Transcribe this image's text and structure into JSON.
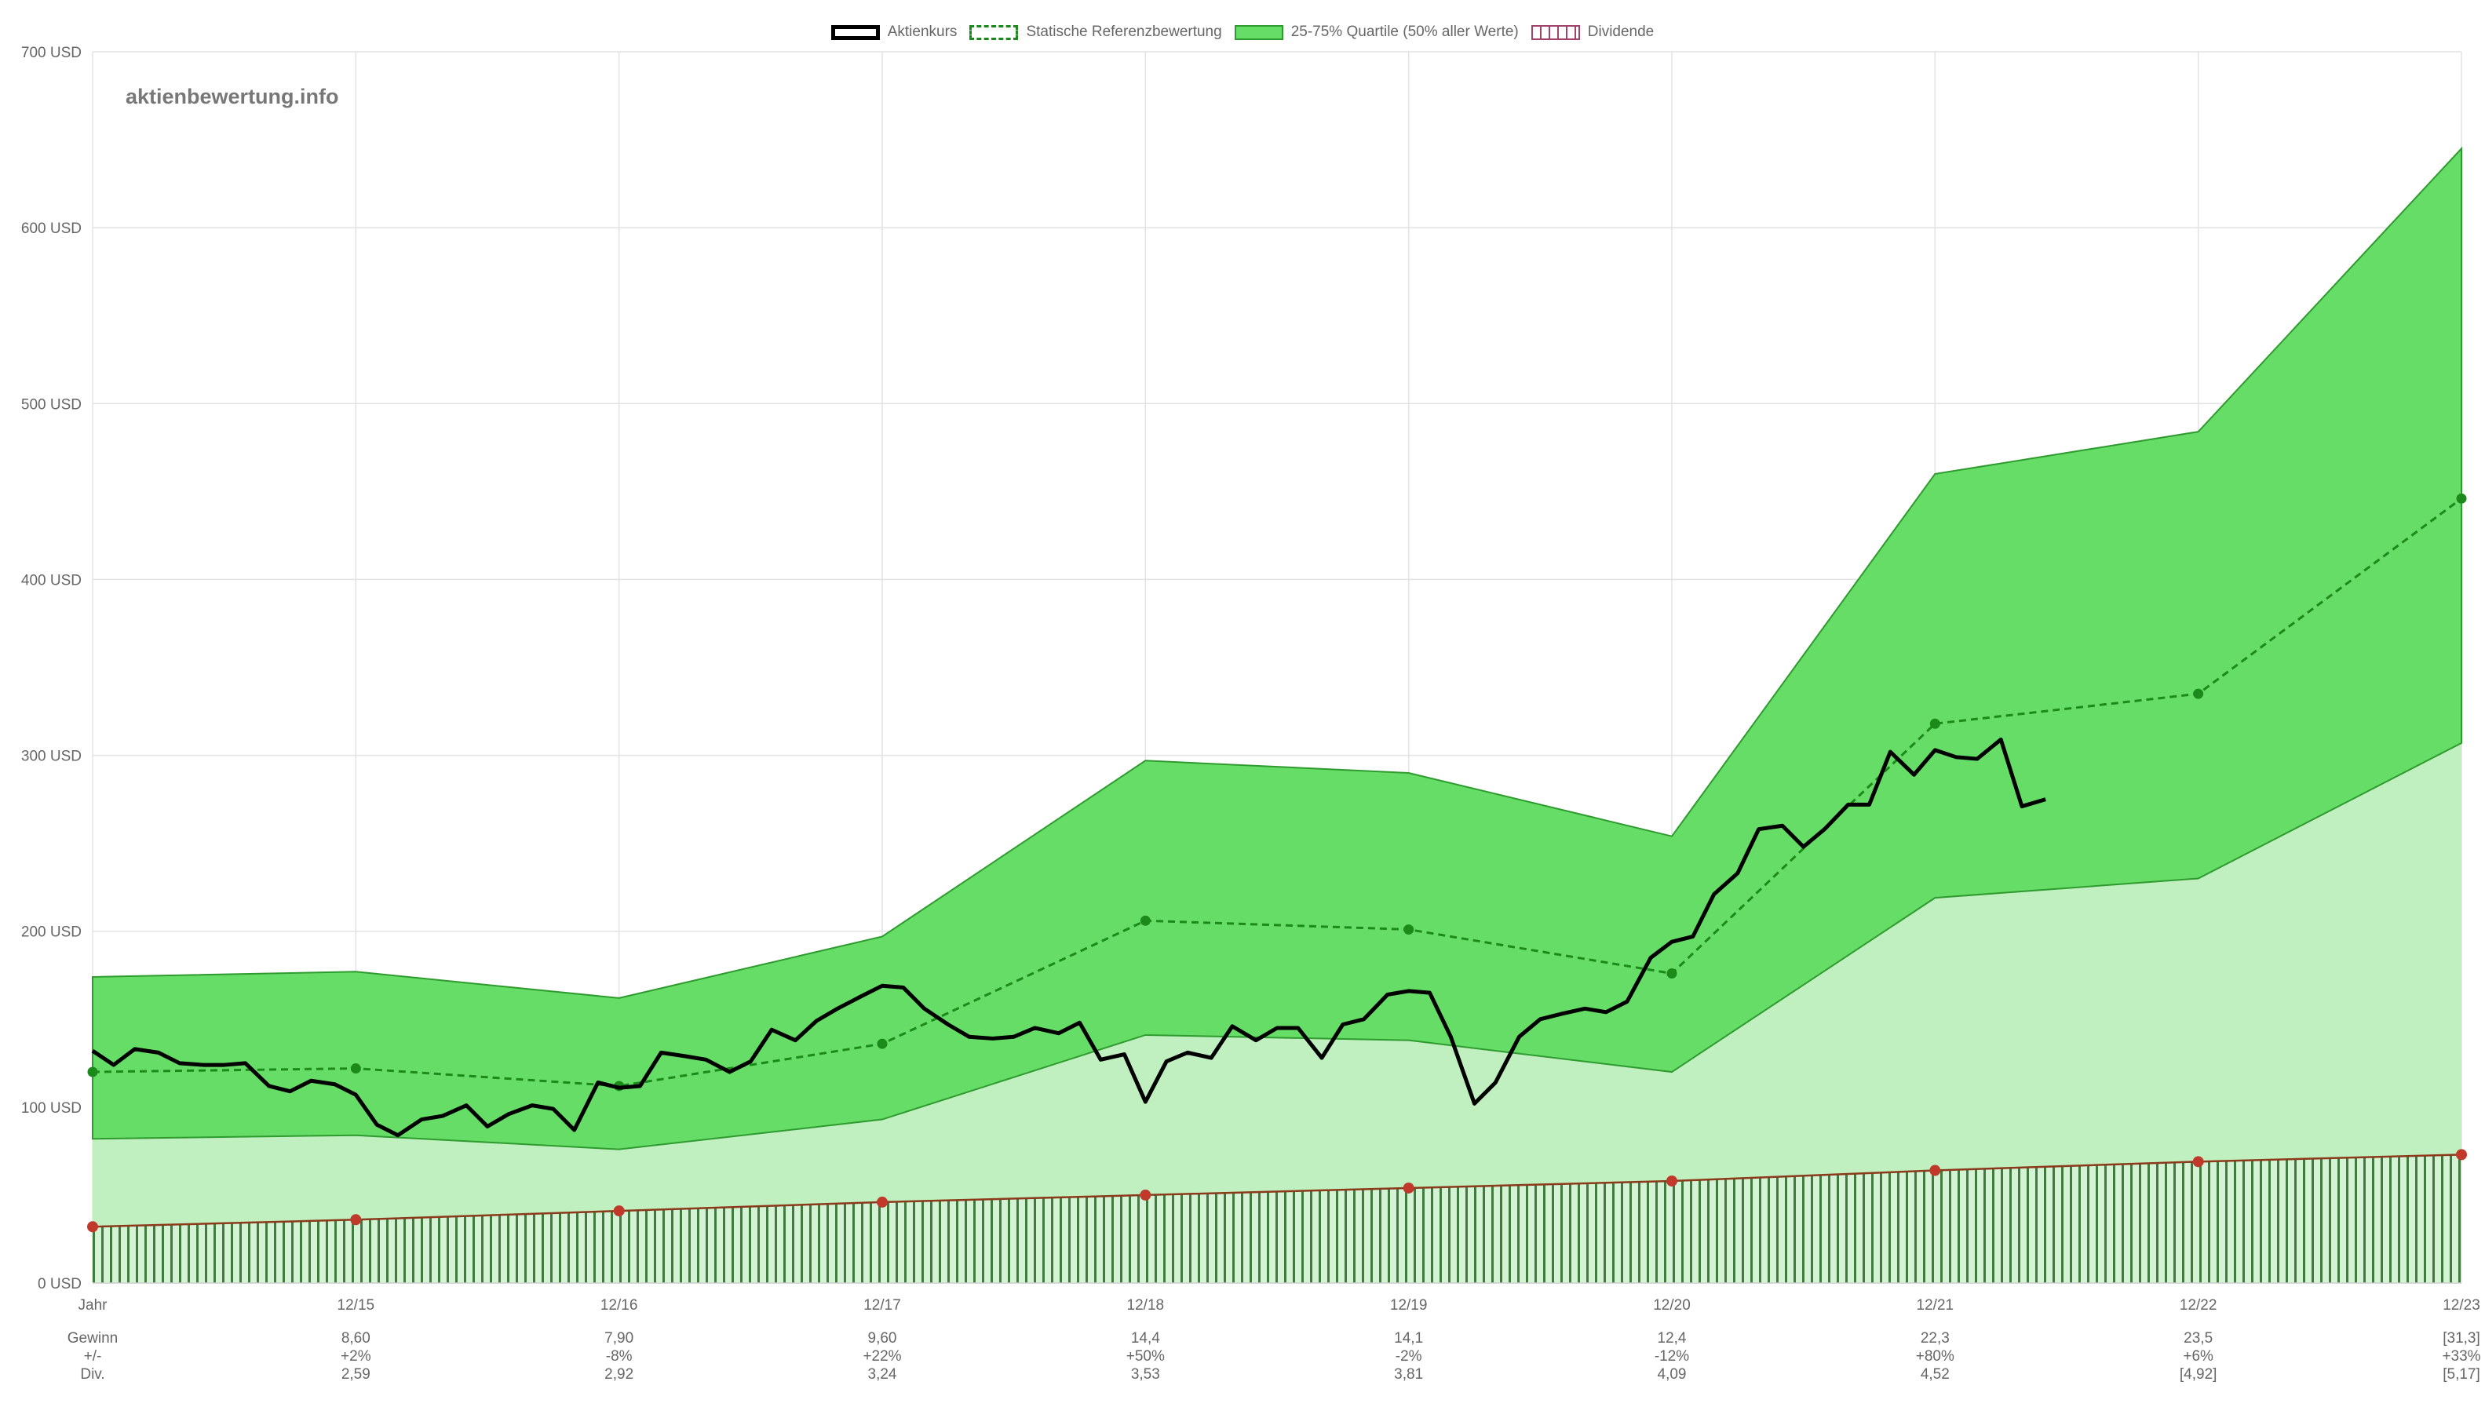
{
  "watermark": "aktienbewertung.info",
  "legend": [
    {
      "label": "Aktienkurs",
      "key": "kurs"
    },
    {
      "label": "Statische Referenzbewertung",
      "key": "ref"
    },
    {
      "label": "25-75% Quartile (50% aller Werte)",
      "key": "band"
    },
    {
      "label": "Dividende",
      "key": "div"
    }
  ],
  "colors": {
    "price": "#000000",
    "reference": "#1b8a1b",
    "band_fill": "#66dd66",
    "lower_fill": "#c0efc0",
    "dividend_line": "#8b3a1a",
    "dividend_point": "#c0392b",
    "dividend_hatch": "#3f7a3f"
  },
  "chart_data": {
    "type": "area",
    "y_axis": {
      "min": 0,
      "max": 700,
      "step": 100,
      "unit": "USD",
      "tick_labels": [
        "0 USD",
        "100 USD",
        "200 USD",
        "300 USD",
        "400 USD",
        "500 USD",
        "600 USD",
        "700 USD"
      ]
    },
    "grid": true,
    "legend_position": "top",
    "x_labels": [
      "Jahr",
      "12/15",
      "12/16",
      "12/17",
      "12/18",
      "12/19",
      "12/20",
      "12/21",
      "12/22",
      "12/23"
    ],
    "table": {
      "row_labels": [
        "Gewinn",
        "+/-",
        "Div."
      ],
      "columns": [
        [
          "8,60",
          "+2%",
          "2,59"
        ],
        [
          "7,90",
          "-8%",
          "2,92"
        ],
        [
          "9,60",
          "+22%",
          "3,24"
        ],
        [
          "14,4",
          "+50%",
          "3,53"
        ],
        [
          "14,1",
          "-2%",
          "3,81"
        ],
        [
          "12,4",
          "-12%",
          "4,09"
        ],
        [
          "22,3",
          "+80%",
          "4,52"
        ],
        [
          "23,5",
          "+6%",
          "[4,92]"
        ],
        [
          "[31,3]",
          "+33%",
          "[5,17]"
        ]
      ]
    },
    "series": [
      {
        "name": "25-75% Quartile (50% aller Werte)",
        "type": "band",
        "x": [
          0,
          1,
          2,
          3,
          4,
          5,
          6,
          7,
          8,
          9
        ],
        "upper": [
          174,
          177,
          162,
          197,
          297,
          290,
          254,
          460,
          484,
          645
        ],
        "lower": [
          82,
          84,
          76,
          93,
          141,
          138,
          120,
          219,
          230,
          307
        ]
      },
      {
        "name": "Statische Referenzbewertung",
        "type": "line",
        "x": [
          0,
          1,
          2,
          3,
          4,
          5,
          6,
          7,
          8,
          9
        ],
        "values": [
          120,
          122,
          112,
          136,
          206,
          201,
          176,
          318,
          335,
          446
        ]
      },
      {
        "name": "Dividende",
        "type": "line",
        "x": [
          0,
          1,
          2,
          3,
          4,
          5,
          6,
          7,
          8,
          9
        ],
        "values": [
          32,
          36,
          41,
          46,
          50,
          54,
          58,
          64,
          69,
          73
        ]
      },
      {
        "name": "Aktienkurs",
        "type": "line",
        "x": [
          0,
          0.08,
          0.16,
          0.25,
          0.33,
          0.42,
          0.5,
          0.58,
          0.67,
          0.75,
          0.83,
          0.92,
          1.0,
          1.08,
          1.16,
          1.25,
          1.33,
          1.42,
          1.5,
          1.58,
          1.67,
          1.75,
          1.83,
          1.92,
          2.0,
          2.08,
          2.16,
          2.25,
          2.33,
          2.42,
          2.5,
          2.58,
          2.67,
          2.75,
          2.83,
          2.92,
          3.0,
          3.08,
          3.16,
          3.25,
          3.33,
          3.42,
          3.5,
          3.58,
          3.67,
          3.75,
          3.83,
          3.92,
          4.0,
          4.08,
          4.16,
          4.25,
          4.33,
          4.42,
          4.5,
          4.58,
          4.67,
          4.75,
          4.83,
          4.92,
          5.0,
          5.08,
          5.16,
          5.25,
          5.33,
          5.42,
          5.5,
          5.58,
          5.67,
          5.75,
          5.83,
          5.92,
          6.0,
          6.08,
          6.16,
          6.25,
          6.33,
          6.42,
          6.5,
          6.58,
          6.67,
          6.75,
          6.83,
          6.92,
          7.0,
          7.08,
          7.16,
          7.25,
          7.33,
          7.42
        ],
        "values": [
          132,
          124,
          133,
          131,
          125,
          124,
          124,
          125,
          112,
          109,
          115,
          113,
          107,
          90,
          84,
          93,
          95,
          101,
          89,
          96,
          101,
          99,
          87,
          114,
          111,
          112,
          131,
          129,
          127,
          120,
          126,
          144,
          138,
          149,
          156,
          163,
          169,
          168,
          156,
          147,
          140,
          139,
          140,
          145,
          142,
          148,
          127,
          130,
          103,
          126,
          131,
          128,
          146,
          138,
          145,
          145,
          128,
          147,
          150,
          164,
          166,
          165,
          140,
          102,
          114,
          140,
          150,
          153,
          156,
          154,
          160,
          185,
          194,
          197,
          221,
          233,
          258,
          260,
          248,
          258,
          272,
          272,
          302,
          289,
          303,
          299,
          298,
          309,
          271,
          275
        ]
      }
    ]
  }
}
